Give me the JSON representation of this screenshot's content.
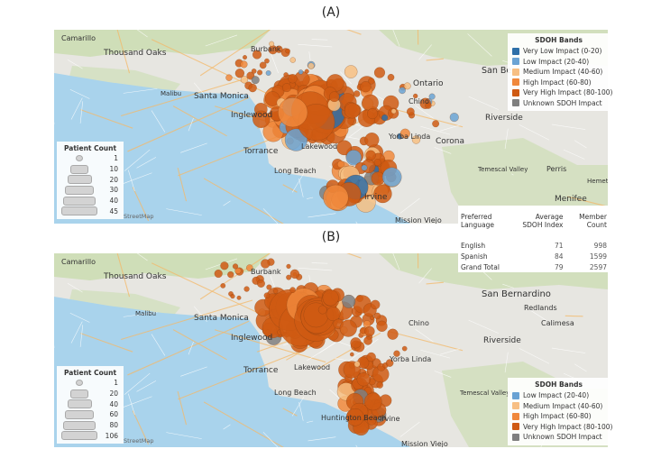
{
  "panels": [
    {
      "caption": "(A)",
      "attribution": "StreetMap",
      "places": [
        {
          "name": "Camarillo"
        },
        {
          "name": "Thousand Oaks"
        },
        {
          "name": "Burbank"
        },
        {
          "name": "Malibu"
        },
        {
          "name": "Santa Monica"
        },
        {
          "name": "Inglewood"
        },
        {
          "name": "Torrance"
        },
        {
          "name": "Lakewood"
        },
        {
          "name": "Long Beach"
        },
        {
          "name": "Ontario"
        },
        {
          "name": "Chino"
        },
        {
          "name": "San Be"
        },
        {
          "name": "Riverside"
        },
        {
          "name": "Yorba Linda"
        },
        {
          "name": "Corona"
        },
        {
          "name": "Temescal Valley"
        },
        {
          "name": "Perris"
        },
        {
          "name": "Hemet"
        },
        {
          "name": "Menifee"
        },
        {
          "name": "Irvine"
        },
        {
          "name": "Mission Viejo"
        }
      ],
      "sdoh_legend": {
        "title": "SDOH Bands",
        "items": [
          {
            "label": "Very Low Impact (0-20)",
            "color": "#2e6fa8"
          },
          {
            "label": "Low Impact (20-40)",
            "color": "#6aa3d4"
          },
          {
            "label": "Medium Impact (40-60)",
            "color": "#f7bf83"
          },
          {
            "label": "High Impact (60-80)",
            "color": "#f0883c"
          },
          {
            "label": "Very High Impact (80-100)",
            "color": "#cf5a13"
          },
          {
            "label": "Unknown SDOH Impact",
            "color": "#7f7f7f"
          }
        ]
      },
      "patient_count": {
        "title": "Patient Count",
        "items": [
          {
            "value": "1"
          },
          {
            "value": "10"
          },
          {
            "value": "20"
          },
          {
            "value": "30"
          },
          {
            "value": "40"
          },
          {
            "value": "45"
          }
        ]
      },
      "table": {
        "headers": [
          "Preferred Language",
          "Average SDOH Index",
          "Member Count"
        ],
        "rows": [
          {
            "language": "English",
            "avg": "71",
            "count": "998"
          },
          {
            "language": "Spanish",
            "avg": "84",
            "count": "1599"
          },
          {
            "language": "Grand Total",
            "avg": "79",
            "count": "2597"
          }
        ]
      }
    },
    {
      "caption": "(B)",
      "attribution": "StreetMap",
      "places": [
        {
          "name": "Camarillo"
        },
        {
          "name": "Thousand Oaks"
        },
        {
          "name": "Burbank"
        },
        {
          "name": "Malibu"
        },
        {
          "name": "Santa Monica"
        },
        {
          "name": "Inglewood"
        },
        {
          "name": "Torrance"
        },
        {
          "name": "Lakewood"
        },
        {
          "name": "Long Beach"
        },
        {
          "name": "San Bernardino"
        },
        {
          "name": "Redlands"
        },
        {
          "name": "Calimesa"
        },
        {
          "name": "Chino"
        },
        {
          "name": "Riverside"
        },
        {
          "name": "Yorba Linda"
        },
        {
          "name": "Temescal Valley"
        },
        {
          "name": "Huntington Beach"
        },
        {
          "name": "Irvine"
        },
        {
          "name": "Mission Viejo"
        }
      ],
      "sdoh_legend": {
        "title": "SDOH Bands",
        "items": [
          {
            "label": "Low Impact (20-40)",
            "color": "#6aa3d4"
          },
          {
            "label": "Medium Impact (40-60)",
            "color": "#f7bf83"
          },
          {
            "label": "High Impact (60-80)",
            "color": "#f0883c"
          },
          {
            "label": "Very High Impact (80-100)",
            "color": "#cf5a13"
          },
          {
            "label": "Unknown SDOH Impact",
            "color": "#7f7f7f"
          }
        ]
      },
      "patient_count": {
        "title": "Patient Count",
        "items": [
          {
            "value": "1"
          },
          {
            "value": "20"
          },
          {
            "value": "40"
          },
          {
            "value": "60"
          },
          {
            "value": "80"
          },
          {
            "value": "106"
          }
        ]
      }
    }
  ],
  "colors": {
    "land": "#e7e6e1",
    "ocean": "#a9d3ec",
    "hills": "#c9dcae",
    "road": "#f4b96a"
  }
}
